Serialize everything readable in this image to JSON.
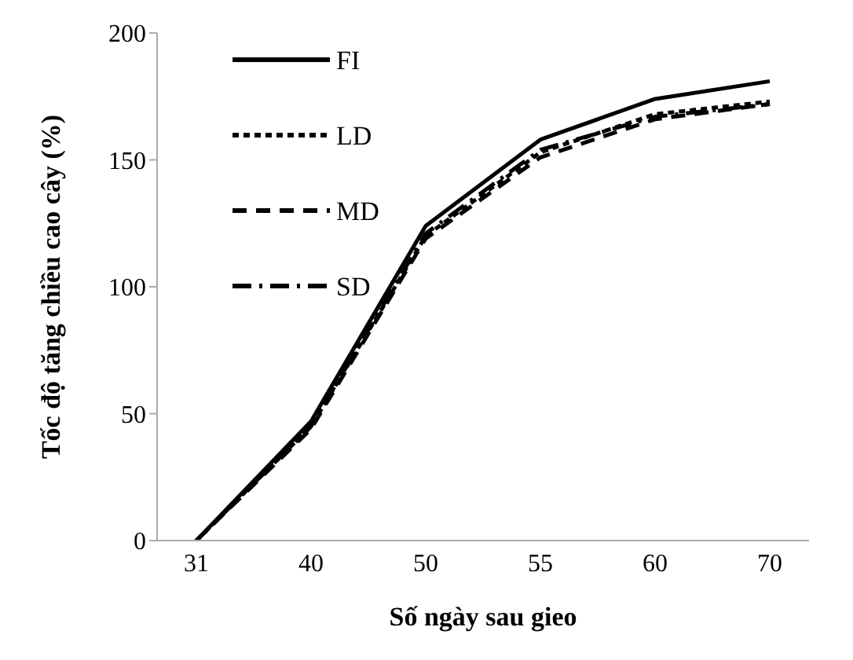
{
  "chart_data": {
    "type": "line",
    "ylabel": "Tốc độ tăng chiều cao cây (%)",
    "xlabel": "Số ngày sau gieo",
    "categories": [
      "31",
      "40",
      "50",
      "55",
      "60",
      "70"
    ],
    "series": [
      {
        "name": "FI",
        "color": "#000000",
        "line_style": "solid",
        "values": [
          0,
          47,
          124,
          158,
          174,
          181
        ]
      },
      {
        "name": "LD",
        "color": "#000000",
        "line_style": "dotted",
        "values": [
          0,
          45,
          120,
          153,
          168,
          173
        ]
      },
      {
        "name": "MD",
        "color": "#000000",
        "line_style": "dashed",
        "values": [
          0,
          44,
          119,
          151,
          166,
          172
        ]
      },
      {
        "name": "SD",
        "color": "#000000",
        "line_style": "dashdot",
        "values": [
          0,
          45,
          121,
          154,
          167,
          172
        ]
      }
    ],
    "ylim": [
      0,
      200
    ],
    "yticks": [
      0,
      50,
      100,
      150,
      200
    ],
    "legend": "top left",
    "marker": "none"
  }
}
